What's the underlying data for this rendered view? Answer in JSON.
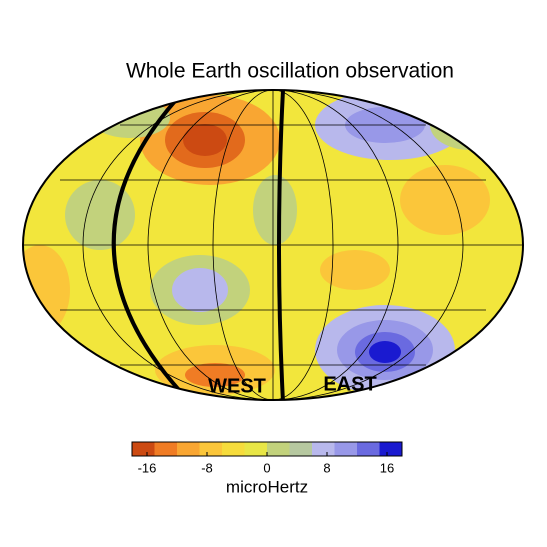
{
  "title": "Whole Earth oscillation observation",
  "map_labels": [
    "WEST",
    "EAST"
  ],
  "colorbar": {
    "label": "microHertz",
    "lim": [
      -18,
      18
    ],
    "ticks": [
      -16,
      -8,
      0,
      8,
      16
    ],
    "colors": [
      "#cc4a12",
      "#f07c24",
      "#f9a632",
      "#fbc63a",
      "#f6dc3c",
      "#e8e646",
      "#c2d27c",
      "#b6c8a0",
      "#b8b8ec",
      "#9898e8",
      "#6a6ae0",
      "#1a1ad0"
    ]
  }
}
